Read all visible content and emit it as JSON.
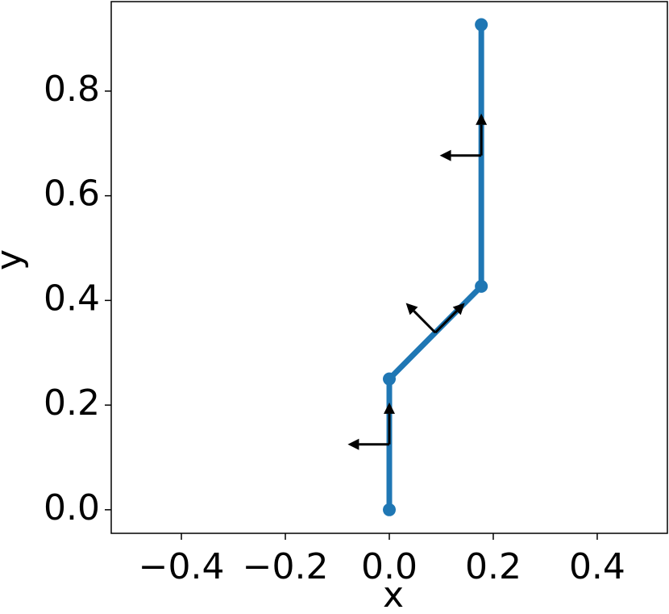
{
  "chart_data": {
    "type": "line",
    "xlabel": "x",
    "ylabel": "y",
    "xlim": [
      -0.535,
      0.535
    ],
    "ylim": [
      -0.045,
      0.971
    ],
    "xticks": [
      {
        "value": -0.4,
        "label": "−0.4"
      },
      {
        "value": -0.2,
        "label": "−0.2"
      },
      {
        "value": 0.0,
        "label": "0.0"
      },
      0.2,
      0.4
    ],
    "yticks": [
      {
        "value": 0.0,
        "label": "0.0"
      },
      0.2,
      0.4,
      0.6,
      0.8
    ],
    "series": [
      {
        "color": "#1f77b4",
        "x": [
          0,
          0,
          0.177,
          0.177
        ],
        "values": [
          0,
          0.25,
          0.427,
          0.927
        ]
      }
    ],
    "frames": [
      {
        "x": 0,
        "y": 0.125,
        "angle": 90
      },
      {
        "x": 0.0885,
        "y": 0.3385,
        "angle": 45
      },
      {
        "x": 0.177,
        "y": 0.677,
        "angle": 90
      }
    ],
    "arrow_length": 0.08,
    "arrow_color": "#000000"
  }
}
